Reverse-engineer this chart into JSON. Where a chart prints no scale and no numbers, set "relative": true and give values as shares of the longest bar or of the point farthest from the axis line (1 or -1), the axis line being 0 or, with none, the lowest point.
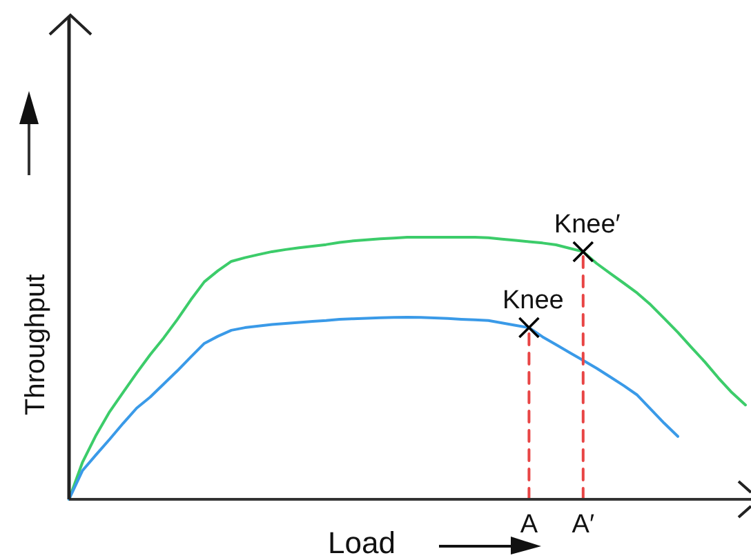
{
  "chart_data": {
    "type": "line",
    "relative": true,
    "xlabel": "Load",
    "ylabel": "Throughput",
    "categories": [
      null,
      null,
      null,
      null,
      null,
      null,
      null,
      null,
      null,
      null,
      null,
      null,
      null,
      null,
      null,
      null,
      null,
      null,
      null,
      null,
      null,
      null,
      null,
      null,
      null,
      null,
      null,
      null,
      null,
      null,
      null,
      null,
      null,
      null,
      "A",
      null,
      null,
      null,
      "A′",
      null,
      null,
      null,
      null,
      null,
      null,
      null,
      null,
      null,
      null,
      null,
      null
    ],
    "grid": false,
    "marker": "none",
    "line_style": "solid",
    "series": [
      {
        "color": "#3ccc6a",
        "values": [
          0,
          0.142,
          0.245,
          0.334,
          0.408,
          0.482,
          0.552,
          0.616,
          0.686,
          0.761,
          0.83,
          0.872,
          0.908,
          0.922,
          0.934,
          0.945,
          0.953,
          0.96,
          0.966,
          0.972,
          0.98,
          0.986,
          0.99,
          0.994,
          0.997,
          1,
          1,
          1,
          1,
          1,
          1,
          0.998,
          0.993,
          0.988,
          0.983,
          0.978,
          0.971,
          0.958,
          0.945,
          0.9,
          0.862,
          0.825,
          0.787,
          0.742,
          0.69,
          0.637,
          0.58,
          0.524,
          0.463,
          0.407,
          0.36
        ]
      },
      {
        "color": "#3a9ae8",
        "values": [
          0,
          0.11,
          0.17,
          0.229,
          0.29,
          0.348,
          0.39,
          0.44,
          0.49,
          0.543,
          0.595,
          0.622,
          0.645,
          0.655,
          0.661,
          0.667,
          0.671,
          0.675,
          0.679,
          0.682,
          0.687,
          0.689,
          0.691,
          0.693,
          0.694,
          0.695,
          0.694,
          0.692,
          0.69,
          0.687,
          0.685,
          0.682,
          0.673,
          0.664,
          0.655,
          0.62,
          0.59,
          0.56,
          0.53,
          0.5,
          0.467,
          0.434,
          0.398,
          0.344,
          0.29,
          0.24,
          null,
          null,
          null,
          null,
          null
        ]
      },
      {
        "color": "#e84545",
        "line_style": "dashed",
        "x": [
          "A",
          "A"
        ],
        "values": [
          0,
          0.655
        ]
      },
      {
        "color": "#e84545",
        "line_style": "dashed",
        "x": [
          "A′",
          "A′"
        ],
        "values": [
          0,
          0.945
        ]
      },
      {
        "type": "scatter",
        "color": "#000000",
        "marker": "cross",
        "x": [
          "A",
          "A′"
        ],
        "values": [
          0.655,
          0.945
        ]
      }
    ],
    "annotations": [
      {
        "text": "Knee",
        "x": "A",
        "y": 0.655
      },
      {
        "text": "Knee′",
        "x": "A′",
        "y": 0.945
      }
    ]
  }
}
